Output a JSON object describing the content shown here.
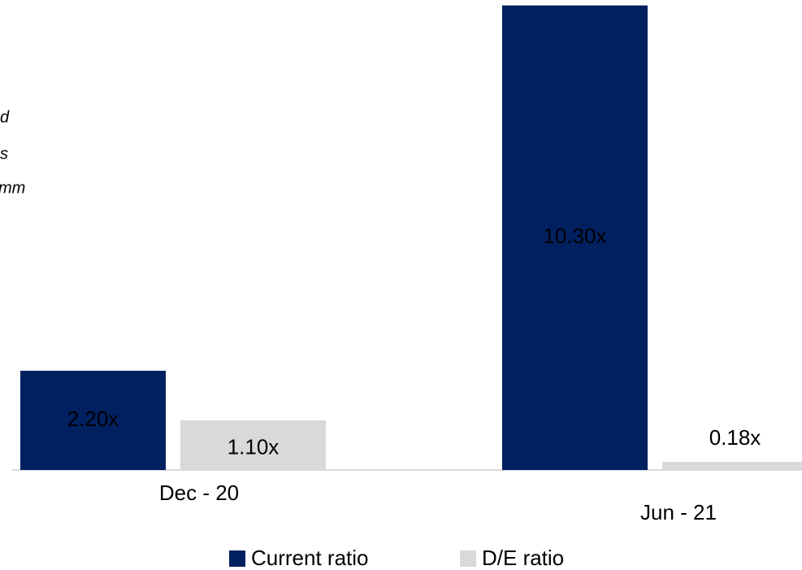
{
  "chart_data": {
    "type": "bar",
    "annotations": [
      "d",
      "s",
      "mm"
    ],
    "categories": [
      "Dec - 20",
      "Jun - 21"
    ],
    "series": [
      {
        "name": "Current ratio",
        "color": "#002060",
        "values": [
          2.2,
          10.3
        ],
        "value_labels": [
          "2.20x",
          "10.30x"
        ]
      },
      {
        "name": "D/E ratio",
        "color": "#d9d9d9",
        "values": [
          1.1,
          0.18
        ],
        "value_labels": [
          "1.10x",
          "0.18x"
        ]
      }
    ],
    "ylim": [
      0,
      10.42
    ],
    "legend": "bottom"
  }
}
